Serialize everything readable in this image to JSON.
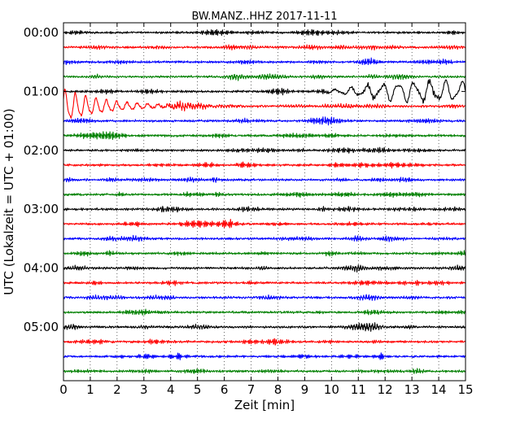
{
  "chart_data": {
    "type": "line",
    "title": "BW.MANZ..HHZ 2017-11-11",
    "xlabel": "Zeit  [min]",
    "ylabel": "UTC (Lokalzeit = UTC + 01:00)",
    "xlim": [
      0,
      15
    ],
    "x_ticks": [
      "0",
      "1",
      "2",
      "3",
      "4",
      "5",
      "6",
      "7",
      "8",
      "9",
      "10",
      "11",
      "12",
      "13",
      "14",
      "15"
    ],
    "y_ticks": [
      "00:00",
      "01:00",
      "02:00",
      "03:00",
      "04:00",
      "05:00"
    ],
    "traces_per_hour": 4,
    "minutes_per_trace": 15,
    "trace_count": 24,
    "trace_colors": [
      "#000000",
      "#ff0000",
      "#0000ff",
      "#008000"
    ],
    "grid": "vertical dotted lines at each minute",
    "events": [
      {
        "trace_index": 4,
        "start_min": 9.5,
        "end_min": 15,
        "description": "large long-period oscillations (teleseismic arrival)"
      },
      {
        "trace_index": 5,
        "start_min": 0,
        "end_min": 7.5,
        "description": "continued long-period oscillations, decaying"
      }
    ]
  }
}
